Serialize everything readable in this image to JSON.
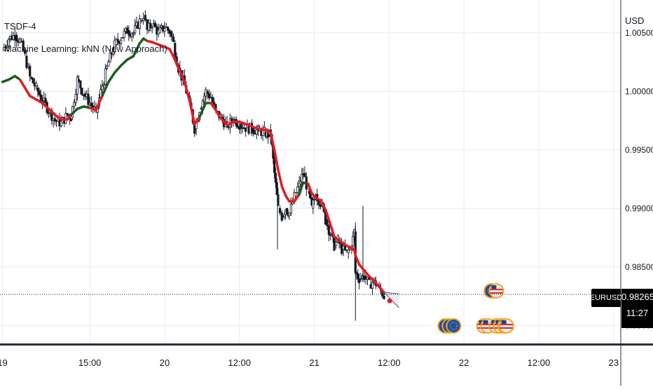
{
  "legend": {
    "symbol_line": "TSDF-4",
    "indicator_line": "Machine Learning: kNN (New Approach)"
  },
  "price_axis": {
    "currency": "USD",
    "ticks": [
      {
        "value": 1.005,
        "label": "1.00500"
      },
      {
        "value": 1.0,
        "label": "1.00000"
      },
      {
        "value": 0.995,
        "label": "0.99500"
      },
      {
        "value": 0.99,
        "label": "0.99000"
      },
      {
        "value": 0.985,
        "label": "0.98500"
      },
      {
        "value": 0.98,
        "label": "0.98000"
      }
    ],
    "last_price_symbol": "EURUSD",
    "last_price": "0.98265",
    "countdown": "11:27",
    "last_price_value": 0.98265
  },
  "time_axis": {
    "ticks": [
      {
        "t": -4,
        "label": "19"
      },
      {
        "t": 3,
        "label": "15:00"
      },
      {
        "t": 9,
        "label": "20"
      },
      {
        "t": 15,
        "label": "12:00"
      },
      {
        "t": 21,
        "label": "21"
      },
      {
        "t": 27,
        "label": "12:00"
      },
      {
        "t": 33,
        "label": "22"
      },
      {
        "t": 39,
        "label": "12:00"
      },
      {
        "t": 45,
        "label": "23"
      }
    ]
  },
  "colors": {
    "bull": "#1b5e20",
    "bear": "#e31b23",
    "candle": "#131722",
    "grid": "#e7ebf0",
    "label_bg": "#000000"
  },
  "chart_data": {
    "type": "candlestick",
    "symbol": "EURUSD",
    "ylim": [
      0.9784,
      1.0078
    ],
    "price_series": [
      [
        -4,
        1.0035
      ],
      [
        -3.5,
        1.0045
      ],
      [
        -3,
        1.0048
      ],
      [
        -2.6,
        1.0043
      ],
      [
        -2.2,
        1.003
      ],
      [
        -1.8,
        1.0012
      ],
      [
        -1.3,
        1.0003
      ],
      [
        -0.8,
        0.9992
      ],
      [
        -0.3,
        0.9984
      ],
      [
        0.2,
        0.9975
      ],
      [
        0.7,
        0.9973
      ],
      [
        1.2,
        0.998
      ],
      [
        1.5,
        0.9978
      ],
      [
        2.0,
        1.001
      ],
      [
        2.5,
        0.9998
      ],
      [
        3.0,
        0.999
      ],
      [
        3.5,
        0.9982
      ],
      [
        4.0,
        1.0005
      ],
      [
        4.5,
        1.0025
      ],
      [
        5.0,
        1.004
      ],
      [
        5.5,
        1.0046
      ],
      [
        6.0,
        1.0052
      ],
      [
        6.5,
        1.005
      ],
      [
        7.0,
        1.006
      ],
      [
        7.3,
        1.0065
      ],
      [
        7.6,
        1.0052
      ],
      [
        8.0,
        1.0058
      ],
      [
        8.5,
        1.005
      ],
      [
        9.0,
        1.0055
      ],
      [
        9.4,
        1.0051
      ],
      [
        9.7,
        1.0041
      ],
      [
        10.1,
        1.002
      ],
      [
        10.6,
        1.0005
      ],
      [
        11.0,
        0.999
      ],
      [
        11.4,
        0.9968
      ],
      [
        11.8,
        0.9985
      ],
      [
        12.3,
        1.0
      ],
      [
        12.7,
        0.9995
      ],
      [
        13.1,
        0.9982
      ],
      [
        13.5,
        0.9978
      ],
      [
        14.0,
        0.997
      ],
      [
        14.5,
        0.9976
      ],
      [
        15.0,
        0.9972
      ],
      [
        15.5,
        0.9969
      ],
      [
        16.0,
        0.9968
      ],
      [
        16.5,
        0.9966
      ],
      [
        17.0,
        0.9965
      ],
      [
        17.3,
        0.9963
      ],
      [
        17.5,
        0.9963
      ],
      [
        17.8,
        0.993
      ],
      [
        18.1,
        0.99
      ],
      [
        18.4,
        0.9893
      ],
      [
        18.7,
        0.99
      ],
      [
        19.0,
        0.9896
      ],
      [
        19.4,
        0.991
      ],
      [
        19.8,
        0.9921
      ],
      [
        20.1,
        0.993
      ],
      [
        20.5,
        0.9915
      ],
      [
        20.8,
        0.99
      ],
      [
        21.1,
        0.9912
      ],
      [
        21.5,
        0.9905
      ],
      [
        21.9,
        0.989
      ],
      [
        22.3,
        0.9878
      ],
      [
        22.6,
        0.9868
      ],
      [
        22.9,
        0.9873
      ],
      [
        23.2,
        0.9865
      ],
      [
        23.6,
        0.9862
      ],
      [
        24.0,
        0.9868
      ],
      [
        24.2,
        0.988
      ],
      [
        24.3,
        0.9845
      ],
      [
        24.6,
        0.984
      ],
      [
        25.0,
        0.9842
      ],
      [
        25.4,
        0.9835
      ],
      [
        25.8,
        0.9838
      ],
      [
        26.2,
        0.9832
      ],
      [
        26.6,
        0.9825
      ]
    ],
    "knn_line": [
      [
        -4,
        1.0008
      ],
      [
        -3.5,
        1.001
      ],
      [
        -3,
        1.0013
      ],
      [
        -2.6,
        1.001
      ],
      [
        -2.2,
        1.0003
      ],
      [
        -1.8,
        0.9996
      ],
      [
        -1.3,
        0.9993
      ],
      [
        -0.8,
        0.999
      ],
      [
        -0.3,
        0.9985
      ],
      [
        0.2,
        0.998
      ],
      [
        0.7,
        0.9976
      ],
      [
        1.2,
        0.9976
      ],
      [
        1.5,
        0.998
      ],
      [
        2.0,
        0.9985
      ],
      [
        2.5,
        0.9987
      ],
      [
        3.0,
        0.9986
      ],
      [
        3.5,
        0.9984
      ],
      [
        4.0,
        0.9996
      ],
      [
        4.5,
        1.0008
      ],
      [
        5.0,
        1.0016
      ],
      [
        5.5,
        1.0022
      ],
      [
        6.0,
        1.0027
      ],
      [
        6.5,
        1.003
      ],
      [
        7.0,
        1.0041
      ],
      [
        7.3,
        1.0045
      ],
      [
        7.6,
        1.0043
      ],
      [
        8.0,
        1.0042
      ],
      [
        8.5,
        1.004
      ],
      [
        9.0,
        1.0038
      ],
      [
        9.4,
        1.0036
      ],
      [
        9.7,
        1.003
      ],
      [
        10.1,
        1.002
      ],
      [
        10.6,
        1.0008
      ],
      [
        11.0,
        0.9992
      ],
      [
        11.4,
        0.9972
      ],
      [
        11.8,
        0.9978
      ],
      [
        12.3,
        0.999
      ],
      [
        12.7,
        0.999
      ],
      [
        13.1,
        0.9984
      ],
      [
        13.5,
        0.9977
      ],
      [
        14.0,
        0.9971
      ],
      [
        14.5,
        0.9974
      ],
      [
        15.0,
        0.9974
      ],
      [
        15.5,
        0.9972
      ],
      [
        16.0,
        0.997
      ],
      [
        16.5,
        0.9968
      ],
      [
        17.0,
        0.9967
      ],
      [
        17.3,
        0.9966
      ],
      [
        17.5,
        0.9965
      ],
      [
        17.8,
        0.995
      ],
      [
        18.1,
        0.9933
      ],
      [
        18.4,
        0.9919
      ],
      [
        18.7,
        0.9911
      ],
      [
        19.0,
        0.9906
      ],
      [
        19.4,
        0.9906
      ],
      [
        19.8,
        0.9912
      ],
      [
        20.1,
        0.9922
      ],
      [
        20.5,
        0.9921
      ],
      [
        20.8,
        0.9913
      ],
      [
        21.1,
        0.9909
      ],
      [
        21.5,
        0.9907
      ],
      [
        21.9,
        0.9899
      ],
      [
        22.3,
        0.9886
      ],
      [
        22.6,
        0.9876
      ],
      [
        22.9,
        0.9873
      ],
      [
        23.2,
        0.9871
      ],
      [
        23.6,
        0.9868
      ],
      [
        24.0,
        0.9866
      ],
      [
        24.2,
        0.9865
      ],
      [
        24.3,
        0.986
      ],
      [
        24.6,
        0.9852
      ],
      [
        25.0,
        0.9847
      ],
      [
        25.4,
        0.9842
      ],
      [
        25.8,
        0.9838
      ],
      [
        26.2,
        0.9833
      ],
      [
        26.6,
        0.9828
      ]
    ],
    "knn_direction": [
      "up",
      "up",
      "up",
      "down",
      "down",
      "down",
      "down",
      "down",
      "down",
      "down",
      "down",
      "down",
      "up",
      "up",
      "up",
      "down",
      "down",
      "up",
      "up",
      "up",
      "up",
      "up",
      "up",
      "up",
      "up",
      "down",
      "down",
      "down",
      "down",
      "down",
      "down",
      "down",
      "down",
      "down",
      "down",
      "up",
      "up",
      "down",
      "down",
      "down",
      "down",
      "down",
      "down",
      "down",
      "down",
      "down",
      "down",
      "down",
      "down",
      "down",
      "down",
      "down",
      "down",
      "down",
      "down",
      "up",
      "up",
      "down",
      "down",
      "down",
      "down",
      "down",
      "down",
      "down",
      "down",
      "down",
      "down",
      "down",
      "down",
      "down",
      "down",
      "down",
      "down",
      "down",
      "down",
      "down"
    ],
    "forecast": {
      "start": [
        26.6,
        0.98282
      ],
      "upper_end": [
        27.8,
        0.9827
      ],
      "lower_end": [
        27.8,
        0.9815
      ]
    },
    "event_badges": [
      {
        "t": 31.5,
        "row": "bottom",
        "country": "EU",
        "count": 3
      },
      {
        "t": 35.2,
        "row": "top",
        "country": "EU",
        "count": 1
      },
      {
        "t": 35.6,
        "row": "top",
        "country": "US",
        "count": 1
      },
      {
        "t": 34.6,
        "row": "bottom",
        "country": "US",
        "count": 2
      },
      {
        "t": 35.6,
        "row": "bottom",
        "country": "US",
        "count": 3
      },
      {
        "t": 36.4,
        "row": "bottom",
        "country": "US",
        "count": 1
      }
    ]
  }
}
